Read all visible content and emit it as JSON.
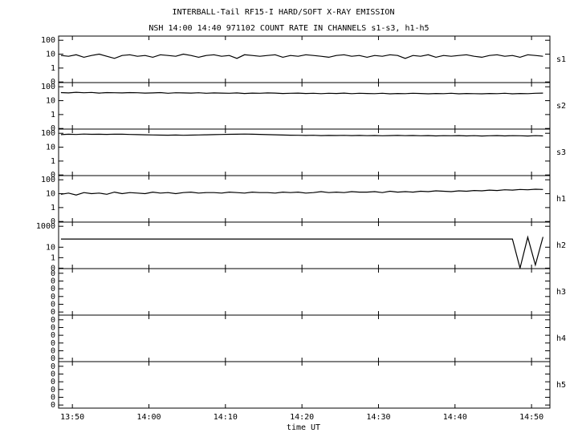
{
  "chart_data": {
    "type": "line",
    "title": "INTERBALL-Tail RF15-I HARD/SOFT X-RAY EMISSION",
    "subtitle": "NSH 14:00 14:40 971102  COUNT RATE IN CHANNELS s1-s3, h1-h5",
    "xlabel": "time UT",
    "xlim": [
      828.2,
      892.4
    ],
    "xticks": [
      {
        "value": 830,
        "label": "13:50"
      },
      {
        "value": 840,
        "label": "14:00"
      },
      {
        "value": 850,
        "label": "14:10"
      },
      {
        "value": 860,
        "label": "14:20"
      },
      {
        "value": 870,
        "label": "14:30"
      },
      {
        "value": 880,
        "label": "14:40"
      },
      {
        "value": 890,
        "label": "14:50"
      }
    ],
    "x": [
      828.5,
      829.5,
      830.5,
      831.5,
      832.5,
      833.5,
      834.5,
      835.5,
      836.5,
      837.5,
      838.5,
      839.5,
      840.5,
      841.5,
      842.5,
      843.5,
      844.5,
      845.5,
      846.5,
      847.5,
      848.5,
      849.5,
      850.5,
      851.5,
      852.5,
      853.5,
      854.5,
      855.5,
      856.5,
      857.5,
      858.5,
      859.5,
      860.5,
      861.5,
      862.5,
      863.5,
      864.5,
      865.5,
      866.5,
      867.5,
      868.5,
      869.5,
      870.5,
      871.5,
      872.5,
      873.5,
      874.5,
      875.5,
      876.5,
      877.5,
      878.5,
      879.5,
      880.5,
      881.5,
      882.5,
      883.5,
      884.5,
      885.5,
      886.5,
      887.5,
      888.5,
      889.5,
      890.5,
      891.5
    ],
    "series": [
      {
        "name": "s1",
        "color": "#000000",
        "log": true,
        "ylim": [
          0.09,
          200
        ],
        "yticks": [
          {
            "value": 0.1,
            "label": "0"
          },
          1,
          10,
          100
        ],
        "values": [
          8,
          7,
          9,
          6,
          8,
          10,
          7,
          5,
          8,
          9,
          7,
          8,
          6,
          9,
          8,
          7,
          10,
          8,
          6,
          8,
          9,
          7,
          8,
          5,
          9,
          8,
          7,
          8,
          9,
          6,
          8,
          7,
          9,
          8,
          7,
          6,
          8,
          9,
          7,
          8,
          6,
          8,
          7,
          9,
          8,
          5,
          8,
          7,
          9,
          6,
          8,
          7,
          8,
          9,
          7,
          6,
          8,
          9,
          7,
          8,
          6,
          9,
          8,
          7
        ]
      },
      {
        "name": "s2",
        "color": "#000000",
        "log": true,
        "ylim": [
          0.09,
          200
        ],
        "yticks": [
          {
            "value": 0.1,
            "label": "0"
          },
          1,
          10,
          100
        ],
        "values": [
          38,
          36,
          40,
          37,
          39,
          35,
          38,
          37,
          36,
          38,
          37,
          35,
          36,
          38,
          34,
          37,
          36,
          35,
          37,
          34,
          36,
          35,
          34,
          36,
          33,
          35,
          34,
          36,
          35,
          33,
          34,
          35,
          33,
          34,
          32,
          34,
          33,
          35,
          32,
          34,
          33,
          32,
          34,
          31,
          33,
          32,
          34,
          33,
          31,
          33,
          32,
          34,
          31,
          33,
          32,
          31,
          33,
          32,
          34,
          31,
          33,
          32,
          34,
          35
        ]
      },
      {
        "name": "s3",
        "color": "#000000",
        "log": true,
        "ylim": [
          0.09,
          200
        ],
        "yticks": [
          {
            "value": 0.1,
            "label": "0"
          },
          1,
          10,
          100
        ],
        "values": [
          80,
          85,
          82,
          88,
          84,
          86,
          83,
          87,
          85,
          82,
          80,
          78,
          76,
          74,
          73,
          75,
          72,
          74,
          76,
          78,
          80,
          82,
          84,
          86,
          88,
          85,
          83,
          80,
          78,
          75,
          73,
          72,
          70,
          72,
          68,
          70,
          69,
          71,
          68,
          70,
          67,
          69,
          66,
          68,
          70,
          67,
          69,
          66,
          68,
          65,
          67,
          66,
          68,
          65,
          67,
          64,
          66,
          68,
          65,
          67,
          66,
          64,
          67,
          65
        ]
      },
      {
        "name": "h1",
        "color": "#000000",
        "log": true,
        "ylim": [
          0.09,
          200
        ],
        "yticks": [
          {
            "value": 0.1,
            "label": "0"
          },
          1,
          10,
          100
        ],
        "values": [
          9,
          11,
          8,
          12,
          10,
          11,
          9,
          13,
          10,
          12,
          11,
          10,
          13,
          11,
          12,
          10,
          12,
          13,
          11,
          12,
          12,
          11,
          13,
          12,
          11,
          13,
          12,
          12,
          11,
          13,
          12,
          13,
          11,
          12,
          14,
          12,
          13,
          12,
          14,
          13,
          13,
          14,
          12,
          15,
          13,
          14,
          13,
          15,
          14,
          16,
          15,
          14,
          16,
          15,
          17,
          16,
          18,
          17,
          19,
          18,
          20,
          19,
          21,
          20
        ]
      },
      {
        "name": "h2",
        "color": "#000000",
        "log": true,
        "ylim": [
          0.09,
          2500
        ],
        "yticks": [
          {
            "value": 0.1,
            "label": "0"
          },
          1,
          10,
          1000
        ],
        "values": [
          60,
          60,
          60,
          60,
          60,
          60,
          60,
          60,
          60,
          60,
          60,
          60,
          60,
          60,
          60,
          60,
          60,
          60,
          60,
          60,
          60,
          60,
          60,
          60,
          60,
          60,
          60,
          60,
          60,
          60,
          60,
          60,
          60,
          60,
          60,
          60,
          60,
          60,
          60,
          60,
          60,
          60,
          60,
          60,
          60,
          60,
          60,
          60,
          60,
          60,
          60,
          60,
          60,
          60,
          60,
          60,
          60,
          60,
          60,
          60,
          0.1,
          90,
          0.2,
          95
        ]
      },
      {
        "name": "h3",
        "color": "#000000",
        "log": false,
        "ylim": [
          -0.4,
          5.6
        ],
        "yticks": [
          {
            "value": 0,
            "label": "0"
          },
          {
            "value": 1,
            "label": "0"
          },
          {
            "value": 2,
            "label": "0"
          },
          {
            "value": 3,
            "label": "0"
          },
          {
            "value": 4,
            "label": "0"
          },
          {
            "value": 5,
            "label": "0"
          }
        ]
      },
      {
        "name": "h4",
        "color": "#000000",
        "log": false,
        "ylim": [
          -0.4,
          5.6
        ],
        "yticks": [
          {
            "value": 0,
            "label": "0"
          },
          {
            "value": 1,
            "label": "0"
          },
          {
            "value": 2,
            "label": "0"
          },
          {
            "value": 3,
            "label": "0"
          },
          {
            "value": 4,
            "label": "0"
          },
          {
            "value": 5,
            "label": "0"
          }
        ]
      },
      {
        "name": "h5",
        "color": "#000000",
        "log": false,
        "ylim": [
          -0.4,
          5.6
        ],
        "yticks": [
          {
            "value": 0,
            "label": "0"
          },
          {
            "value": 1,
            "label": "0"
          },
          {
            "value": 2,
            "label": "0"
          },
          {
            "value": 3,
            "label": "0"
          },
          {
            "value": 4,
            "label": "0"
          },
          {
            "value": 5,
            "label": "0"
          }
        ]
      }
    ]
  }
}
